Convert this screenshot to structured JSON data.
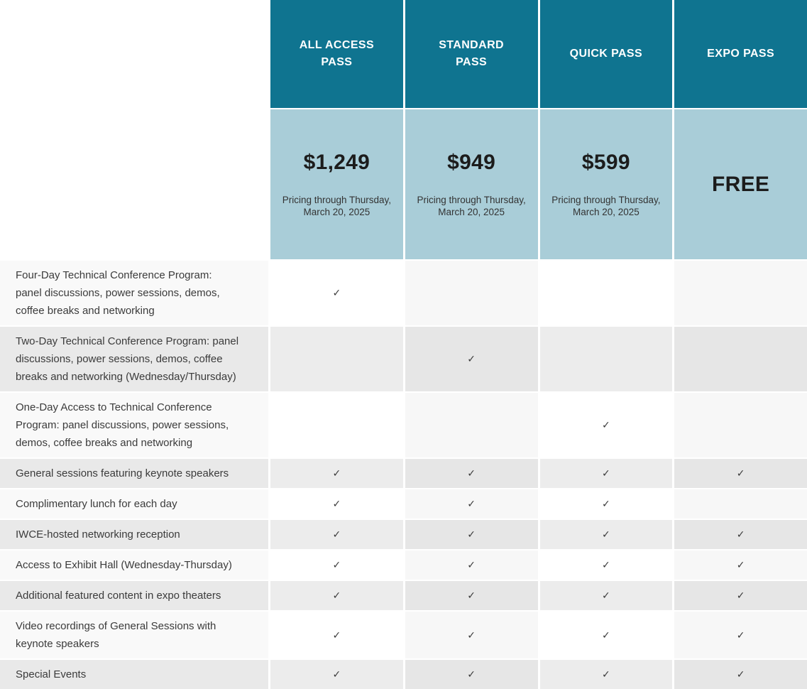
{
  "table": {
    "check_glyph": "✓",
    "colors": {
      "header_teal": "#0f7490",
      "price_light_blue": "#a9cdd8",
      "row_stripe_light": "#f9f9f9",
      "row_stripe_dark": "#e9e9e9"
    },
    "passes": [
      {
        "name": "ALL ACCESS PASS",
        "price": "$1,249",
        "note": "Pricing through Thursday, March 20, 2025"
      },
      {
        "name": "STANDARD PASS",
        "price": "$949",
        "note": "Pricing through Thursday, March 20, 2025"
      },
      {
        "name": "QUICK PASS",
        "price": "$599",
        "note": "Pricing through Thursday, March 20, 2025"
      },
      {
        "name": "EXPO PASS",
        "price": "FREE",
        "note": ""
      }
    ],
    "features": [
      {
        "label": "Four-Day Technical Conference Program: panel discussions, power sessions, demos, coffee breaks and networking",
        "included": [
          true,
          false,
          false,
          false
        ],
        "lines": 3
      },
      {
        "label": "Two-Day Technical Conference Program: panel discussions, power sessions, demos, coffee breaks and networking (Wednesday/Thursday)",
        "included": [
          false,
          true,
          false,
          false
        ],
        "lines": 3
      },
      {
        "label": "One-Day Access to Technical Conference Program: panel discussions, power sessions, demos, coffee breaks and networking",
        "included": [
          false,
          false,
          true,
          false
        ],
        "lines": 3
      },
      {
        "label": "General sessions featuring keynote speakers",
        "included": [
          true,
          true,
          true,
          true
        ],
        "lines": 1
      },
      {
        "label": "Complimentary lunch for each day",
        "included": [
          true,
          true,
          true,
          false
        ],
        "lines": 1
      },
      {
        "label": "IWCE-hosted networking reception",
        "included": [
          true,
          true,
          true,
          true
        ],
        "lines": 1
      },
      {
        "label": "Access to Exhibit Hall (Wednesday-Thursday)",
        "included": [
          true,
          true,
          true,
          true
        ],
        "lines": 1
      },
      {
        "label": "Additional featured content in expo theaters",
        "included": [
          true,
          true,
          true,
          true
        ],
        "lines": 1
      },
      {
        "label": "Video recordings of General Sessions with keynote speakers",
        "included": [
          true,
          true,
          true,
          true
        ],
        "lines": 2
      },
      {
        "label": "Special Events",
        "included": [
          true,
          true,
          true,
          true
        ],
        "lines": 1
      }
    ]
  }
}
